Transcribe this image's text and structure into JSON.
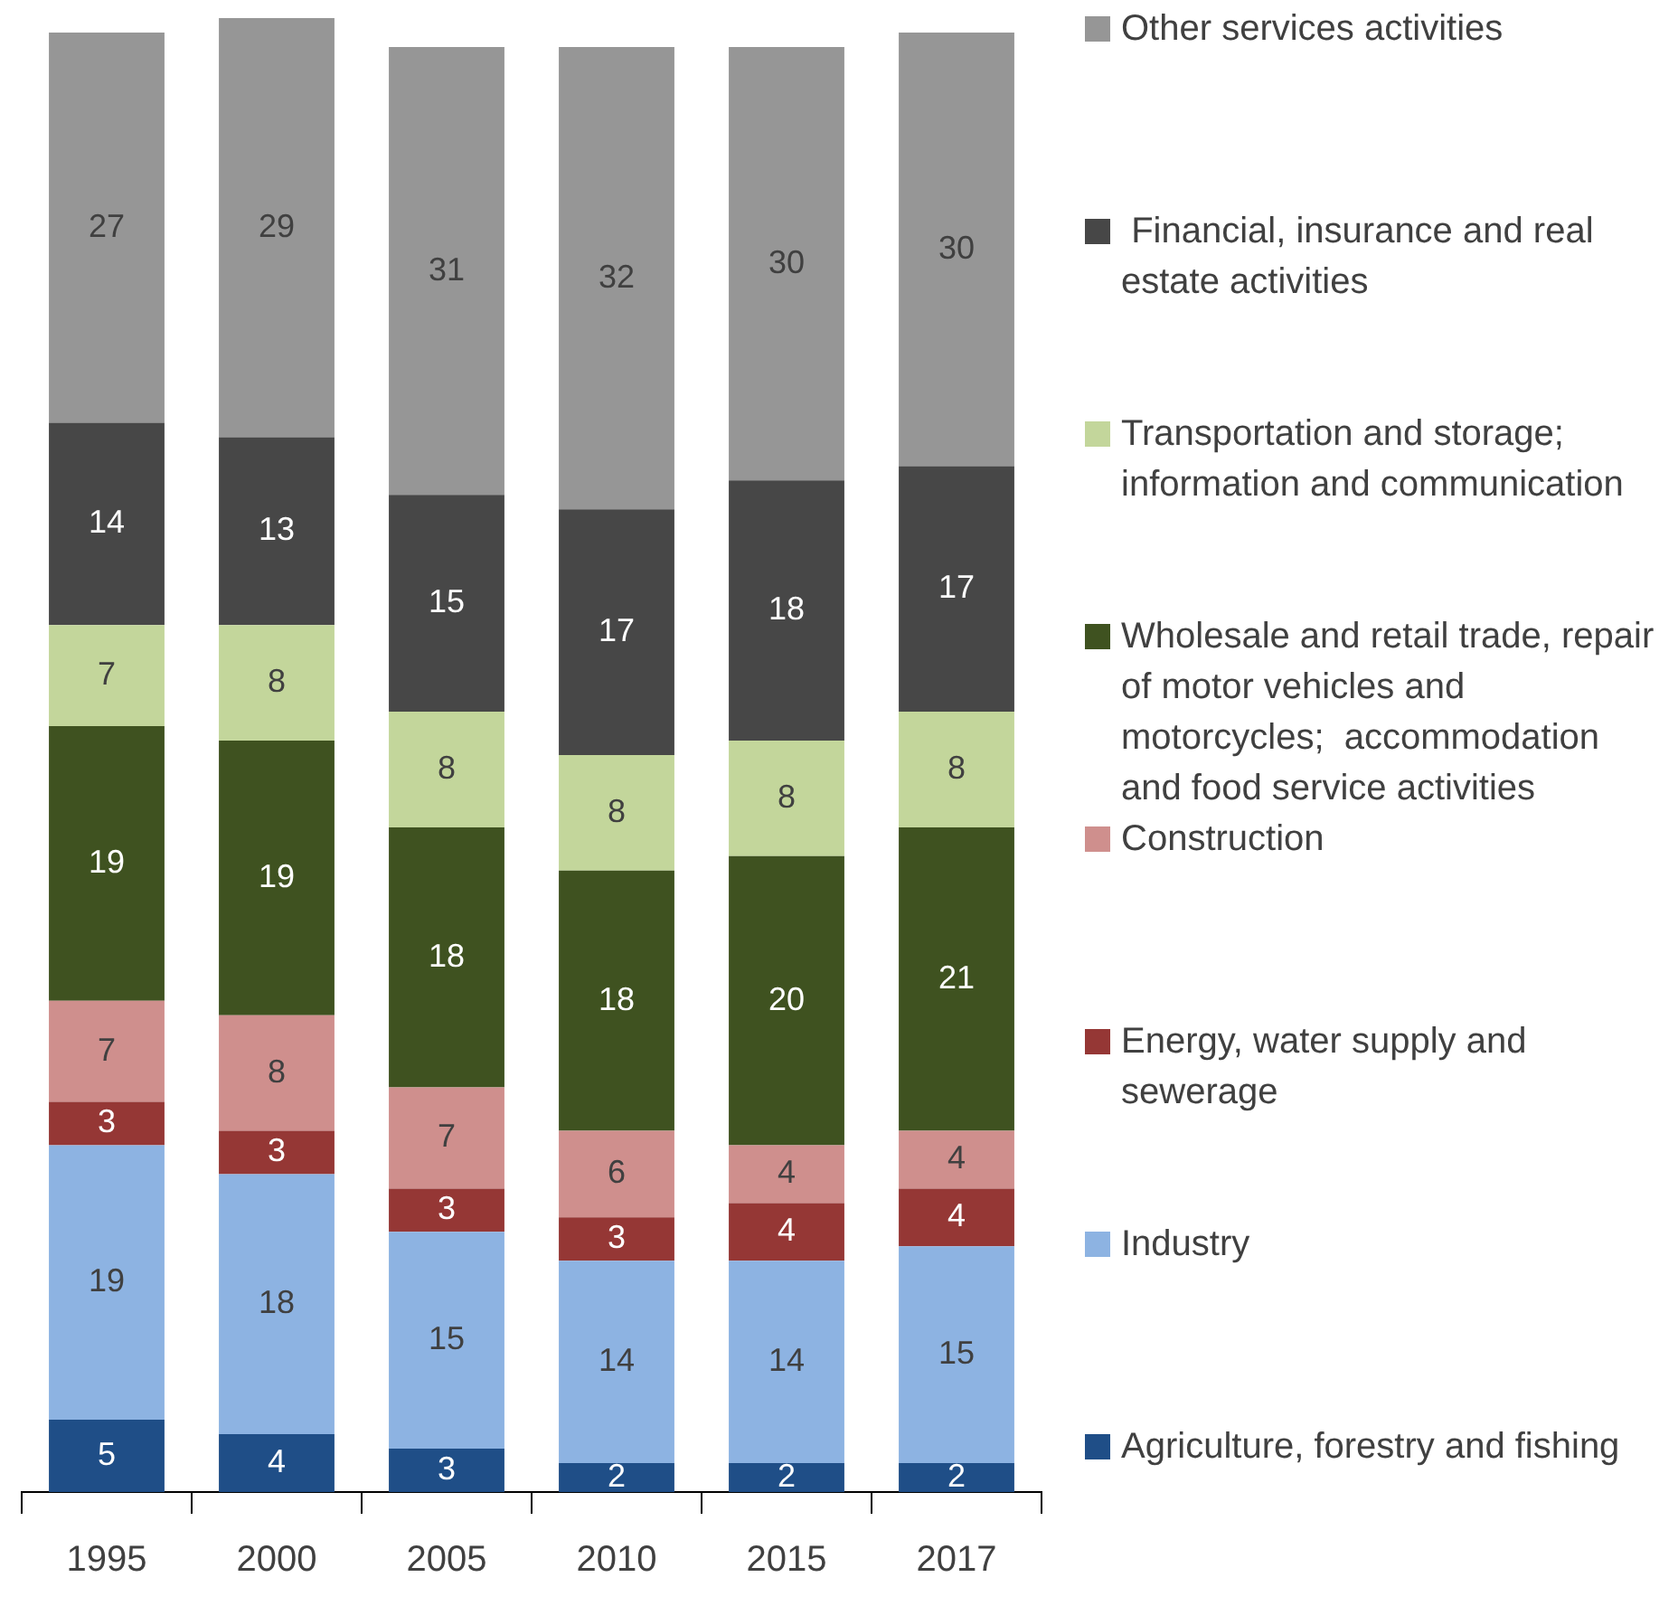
{
  "chart_data": {
    "type": "bar",
    "stacked": true,
    "data_labels": true,
    "grid": false,
    "legend": "right",
    "tick_labels": "x",
    "categories": [
      "1995",
      "2000",
      "2005",
      "2010",
      "2015",
      "2017"
    ],
    "series": [
      {
        "name": "Agriculture, forestry and fishing",
        "color": "#1f4e87",
        "values": [
          5,
          4,
          3,
          2,
          2,
          2
        ]
      },
      {
        "name": "Industry",
        "color": "#8db3e2",
        "values": [
          19,
          18,
          15,
          14,
          14,
          15
        ]
      },
      {
        "name": "Energy, water supply and sewerage",
        "color": "#953735",
        "values": [
          3,
          3,
          3,
          3,
          4,
          4
        ]
      },
      {
        "name": "Construction",
        "color": "#cf8f8d",
        "values": [
          7,
          8,
          7,
          6,
          4,
          4
        ]
      },
      {
        "name": "Wholesale and retail trade, repair of motor vehicles and motorcycles;  accommodation and food service activities",
        "color": "#3f5220",
        "values": [
          19,
          19,
          18,
          18,
          20,
          21
        ]
      },
      {
        "name": "Transportation and storage; information and communication",
        "color": "#c3d69b",
        "values": [
          7,
          8,
          8,
          8,
          8,
          8
        ]
      },
      {
        "name": " Financial, insurance and real estate activities",
        "color": "#474747",
        "values": [
          14,
          13,
          15,
          17,
          18,
          17
        ]
      },
      {
        "name": "Other services activities",
        "color": "#969696",
        "values": [
          27,
          29,
          31,
          32,
          30,
          30
        ]
      }
    ]
  }
}
